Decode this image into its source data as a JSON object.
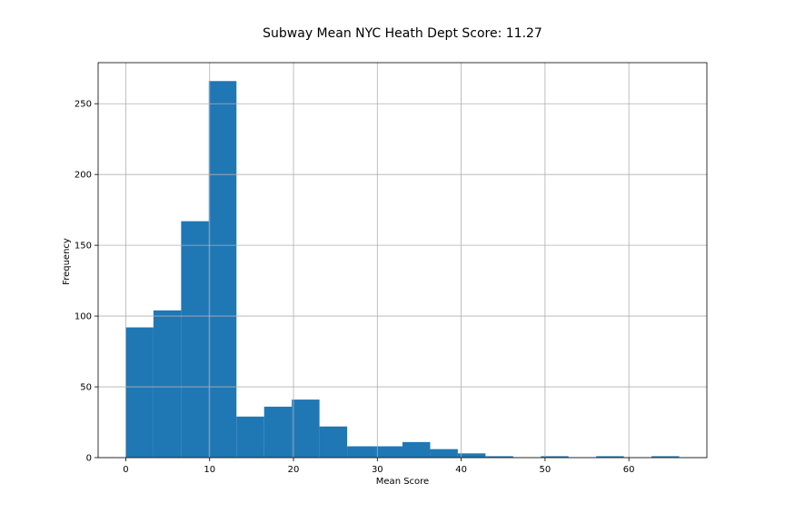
{
  "chart_data": {
    "type": "bar",
    "title": "Subway Mean NYC Heath Dept Score: 11.27",
    "xlabel": "Mean Score",
    "ylabel": "Frequency",
    "xlim": [
      -3.3,
      69.3
    ],
    "ylim": [
      0,
      279
    ],
    "xticks": [
      0,
      10,
      20,
      30,
      40,
      50,
      60
    ],
    "yticks": [
      0,
      50,
      100,
      150,
      200,
      250
    ],
    "grid": true,
    "bar_color": "#1f77b4",
    "bins": [
      {
        "start": 0.0,
        "end": 3.3,
        "count": 92
      },
      {
        "start": 3.3,
        "end": 6.6,
        "count": 104
      },
      {
        "start": 6.6,
        "end": 9.9,
        "count": 167
      },
      {
        "start": 9.9,
        "end": 13.2,
        "count": 266
      },
      {
        "start": 13.2,
        "end": 16.5,
        "count": 29
      },
      {
        "start": 16.5,
        "end": 19.8,
        "count": 36
      },
      {
        "start": 19.8,
        "end": 23.1,
        "count": 41
      },
      {
        "start": 23.1,
        "end": 26.4,
        "count": 22
      },
      {
        "start": 26.4,
        "end": 29.7,
        "count": 8
      },
      {
        "start": 29.7,
        "end": 33.0,
        "count": 8
      },
      {
        "start": 33.0,
        "end": 36.3,
        "count": 11
      },
      {
        "start": 36.3,
        "end": 39.6,
        "count": 6
      },
      {
        "start": 39.6,
        "end": 42.9,
        "count": 3
      },
      {
        "start": 42.9,
        "end": 46.2,
        "count": 1
      },
      {
        "start": 46.2,
        "end": 49.5,
        "count": 0
      },
      {
        "start": 49.5,
        "end": 52.8,
        "count": 1
      },
      {
        "start": 52.8,
        "end": 56.1,
        "count": 0
      },
      {
        "start": 56.1,
        "end": 59.4,
        "count": 1
      },
      {
        "start": 59.4,
        "end": 62.7,
        "count": 0
      },
      {
        "start": 62.7,
        "end": 66.0,
        "count": 1
      }
    ]
  }
}
